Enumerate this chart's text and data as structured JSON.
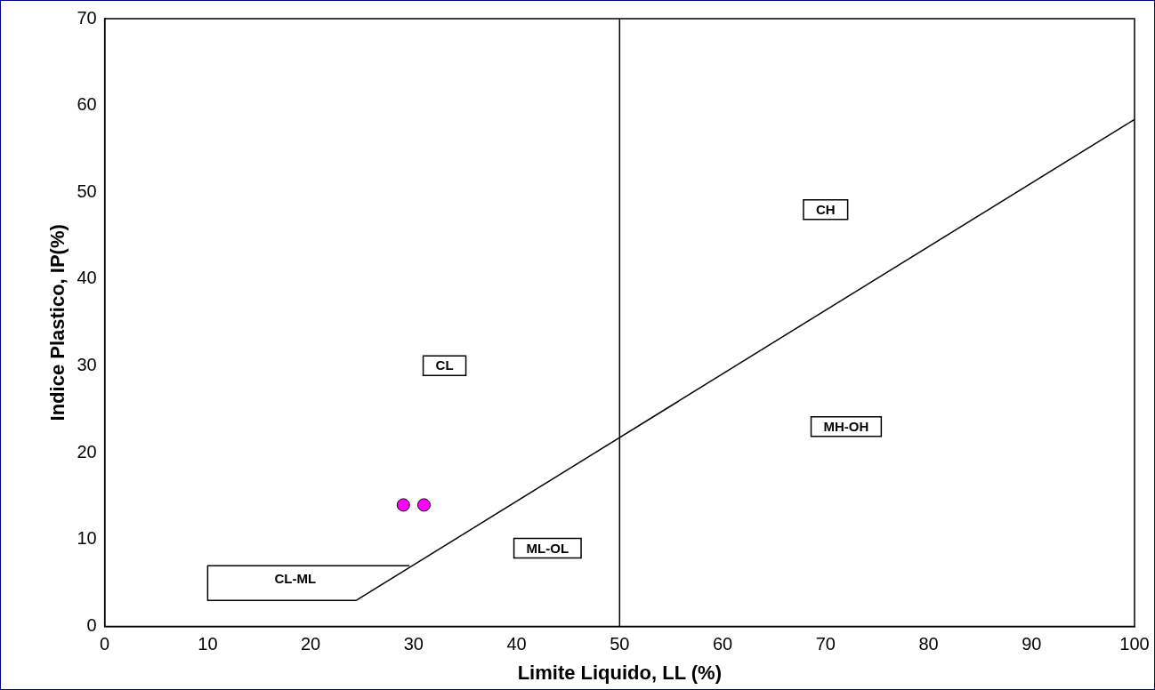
{
  "chart_data": {
    "type": "scatter",
    "xlabel": "Limite Liquido, LL (%)",
    "ylabel": "Indice Plastico, IP(%)",
    "series": [
      {
        "type": "scatter",
        "color": "#ff00ff",
        "x": [
          29,
          31
        ],
        "values": [
          14,
          14
        ],
        "marker": "circle"
      },
      {
        "type": "line",
        "color": "#000000",
        "x": [
          24.4,
          100
        ],
        "values": [
          3,
          58.4
        ],
        "marker": "none",
        "line_style": "solid"
      },
      {
        "type": "line",
        "color": "#000000",
        "x": [
          29.6,
          10,
          10,
          24.4
        ],
        "values": [
          7,
          7,
          3,
          3
        ],
        "marker": "none",
        "line_style": "solid"
      }
    ],
    "ref_lines": [
      {
        "axis": "x",
        "value": 50,
        "color": "#000000"
      }
    ],
    "annotations": [
      "CL",
      "CH",
      "ML-OL",
      "MH-OH",
      "CL-ML"
    ],
    "xlim": [
      0,
      100
    ],
    "xticks": [
      0,
      10,
      20,
      30,
      40,
      50,
      60,
      70,
      80,
      90,
      100
    ],
    "ylim": [
      0,
      70
    ],
    "yticks": [
      0,
      10,
      20,
      30,
      40,
      50,
      60,
      70
    ],
    "grid": false,
    "legend": false
  }
}
